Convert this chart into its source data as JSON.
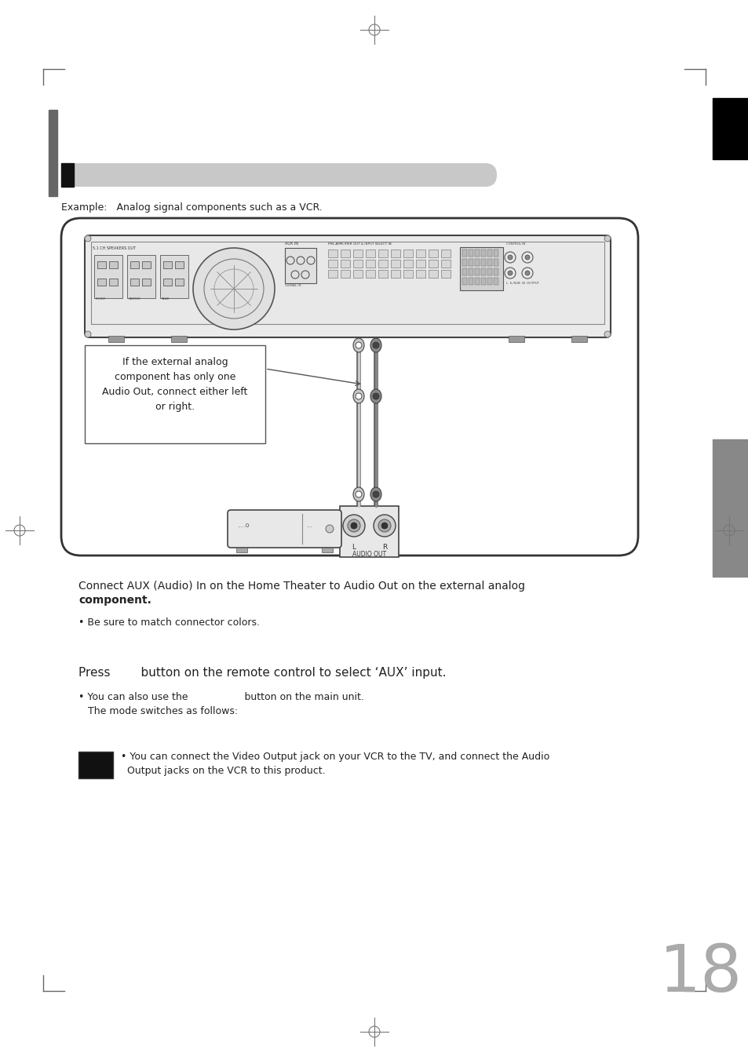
{
  "bg_color": "#ffffff",
  "page_number": "18",
  "page_num_color": "#aaaaaa",
  "example_text": "Example:   Analog signal components such as a VCR.",
  "callout_text": "If the external analog\ncomponent has only one\nAudio Out, connect either left\nor right.",
  "main_text1_line1": "Connect AUX (Audio) In on the Home Theater to Audio Out on the external analog",
  "main_text1_line2": "component.",
  "bullet1": "• Be sure to match connector colors.",
  "press_text": "Press        button on the remote control to select ‘AUX’ input.",
  "bullet2": "• You can also use the                  button on the main unit.",
  "mode_text": "   The mode switches as follows:",
  "note_text_line1": "• You can connect the Video Output jack on your VCR to the TV, and connect the Audio",
  "note_text_line2": "  Output jacks on the VCR to this product.",
  "left_bar_color": "#666666",
  "right_black_tab_color": "#000000",
  "right_gray_tab_color": "#888888",
  "header_bar_gray": "#cccccc",
  "header_bar_black": "#222222",
  "diagram_border": "#333333",
  "receiver_fill": "#f0f0f0",
  "receiver_border": "#444444"
}
